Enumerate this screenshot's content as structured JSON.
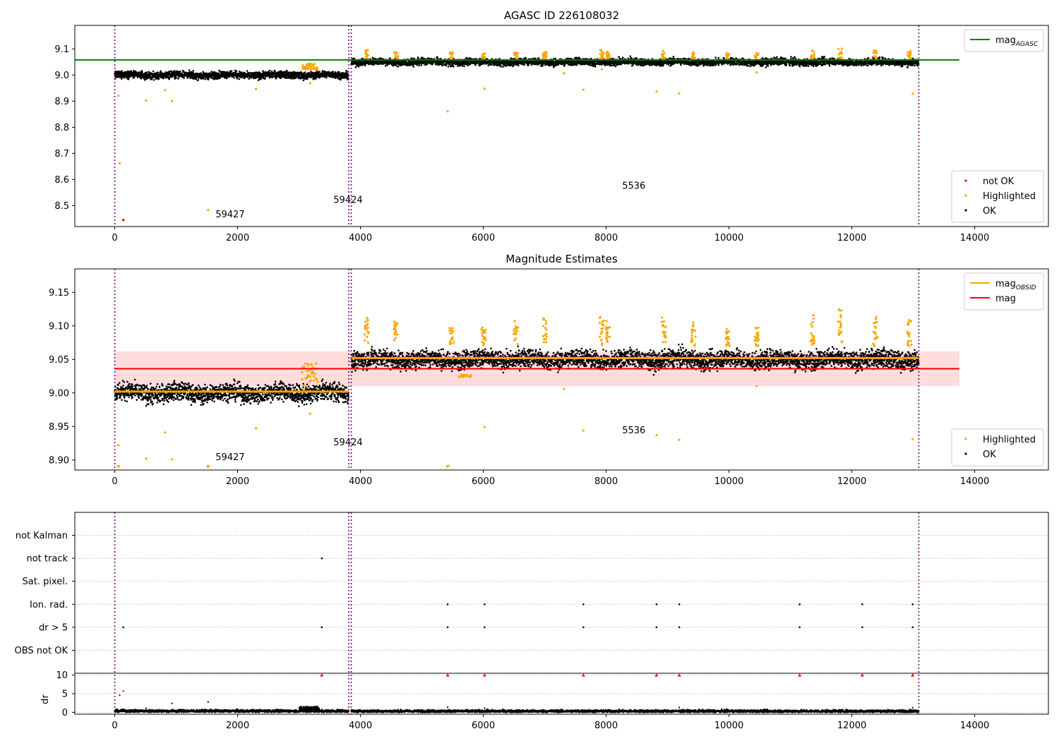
{
  "chart_data": [
    {
      "type": "scatter",
      "title": "AGASC ID 226108032",
      "xlim": [
        -650,
        15200
      ],
      "ylim": [
        8.42,
        9.19
      ],
      "xticks": [
        0,
        2000,
        4000,
        6000,
        8000,
        10000,
        12000,
        14000
      ],
      "yticks": [
        8.5,
        8.6,
        8.7,
        8.8,
        8.9,
        9.0,
        9.1
      ],
      "ytick_format": 1,
      "obs_boundaries": [
        0,
        3810,
        3850,
        13090
      ],
      "annotations": [
        {
          "text": "59427",
          "x": 1640,
          "y": 8.455
        },
        {
          "text": "59424",
          "x": 3560,
          "y": 8.51
        },
        {
          "text": "5536",
          "x": 8260,
          "y": 8.565
        }
      ],
      "reference_lines": [
        {
          "name": "mag_AGASC",
          "y": 9.058,
          "x": [
            -650,
            13750
          ],
          "color": "#008000"
        }
      ],
      "segments": [
        {
          "x": [
            0,
            3810
          ],
          "center": 9.0,
          "spread": 0.012,
          "color": "#000000"
        },
        {
          "x": [
            3850,
            13090
          ],
          "center": 9.05,
          "spread": 0.012,
          "color": "#000000"
        }
      ],
      "series": [
        {
          "name": "not OK",
          "color": "#ff0000",
          "points": [
            [
              140,
              8.445
            ]
          ]
        },
        {
          "name": "Highlighted",
          "color": "#ffa500",
          "points": [
            [
              60,
              8.921
            ],
            [
              80,
              8.662
            ],
            [
              510,
              8.902
            ],
            [
              820,
              8.942
            ],
            [
              930,
              8.901
            ],
            [
              1520,
              8.483
            ],
            [
              2300,
              8.947
            ],
            [
              3180,
              8.969
            ],
            [
              5420,
              8.861
            ],
            [
              6020,
              8.948
            ],
            [
              7310,
              9.007
            ],
            [
              7630,
              8.944
            ],
            [
              7930,
              9.022
            ],
            [
              8820,
              8.937
            ],
            [
              9190,
              8.93
            ],
            [
              10450,
              9.01
            ],
            [
              12990,
              8.929
            ]
          ]
        },
        {
          "name": "OK",
          "color": "#000000",
          "points": []
        }
      ],
      "legends": [
        {
          "position": "top-right",
          "items": [
            {
              "label": "mag",
              "sub": "AGASC",
              "kind": "line",
              "color": "#008000"
            }
          ]
        },
        {
          "position": "bottom-right",
          "items": [
            {
              "label": "not OK",
              "kind": "dot",
              "color": "#ff0000"
            },
            {
              "label": "Highlighted",
              "kind": "dot",
              "color": "#ffa500"
            },
            {
              "label": "OK",
              "kind": "dot",
              "color": "#000000"
            }
          ]
        }
      ]
    },
    {
      "type": "scatter",
      "title": "Magnitude Estimates",
      "xlim": [
        -650,
        15200
      ],
      "ylim": [
        8.885,
        9.185
      ],
      "xticks": [
        0,
        2000,
        4000,
        6000,
        8000,
        10000,
        12000,
        14000
      ],
      "yticks": [
        8.9,
        8.95,
        9.0,
        9.05,
        9.1,
        9.15
      ],
      "ytick_format": 2,
      "obs_boundaries": [
        0,
        3810,
        3850,
        13090
      ],
      "annotations": [
        {
          "text": "59427",
          "x": 1640,
          "y": 8.9
        },
        {
          "text": "59424",
          "x": 3560,
          "y": 8.922
        },
        {
          "text": "5536",
          "x": 8260,
          "y": 8.94
        }
      ],
      "band": {
        "y": [
          9.01,
          9.062
        ],
        "x": [
          0,
          13750
        ],
        "color": "#ffb3b3"
      },
      "reference_lines": [
        {
          "name": "mag",
          "y": 9.036,
          "x": [
            0,
            13750
          ],
          "color": "#ff0000"
        },
        {
          "name": "mag_OBSID",
          "y": 9.002,
          "x": [
            0,
            3810
          ],
          "color": "#ffa500"
        },
        {
          "name": "mag_OBSID",
          "y": 9.052,
          "x": [
            3850,
            13090
          ],
          "color": "#ffa500"
        }
      ],
      "segments": [
        {
          "x": [
            0,
            3810
          ],
          "center": 9.0,
          "spread": 0.012,
          "color": "#000000"
        },
        {
          "x": [
            3850,
            13090
          ],
          "center": 9.05,
          "spread": 0.012,
          "color": "#000000"
        }
      ],
      "series": [
        {
          "name": "Highlighted",
          "color": "#ffa500",
          "points": [
            [
              60,
              8.922
            ],
            [
              510,
              8.902
            ],
            [
              820,
              8.941
            ],
            [
              930,
              8.901
            ],
            [
              2300,
              8.947
            ],
            [
              3180,
              8.969
            ],
            [
              6020,
              8.949
            ],
            [
              7310,
              9.006
            ],
            [
              7630,
              8.944
            ],
            [
              8820,
              8.937
            ],
            [
              9190,
              8.93
            ],
            [
              10450,
              9.01
            ],
            [
              12990,
              8.931
            ]
          ]
        },
        {
          "name": "OK",
          "color": "#000000",
          "points": []
        }
      ],
      "clusters": [
        {
          "x": 4100,
          "top": 9.115
        },
        {
          "x": 4580,
          "top": 9.108
        },
        {
          "x": 5480,
          "top": 9.102
        },
        {
          "x": 6000,
          "top": 9.098
        },
        {
          "x": 6530,
          "top": 9.108
        },
        {
          "x": 7000,
          "top": 9.113
        },
        {
          "x": 7930,
          "top": 9.115
        },
        {
          "x": 8030,
          "top": 9.108
        },
        {
          "x": 8940,
          "top": 9.113
        },
        {
          "x": 9420,
          "top": 9.105
        },
        {
          "x": 9980,
          "top": 9.098
        },
        {
          "x": 10450,
          "top": 9.103
        },
        {
          "x": 11360,
          "top": 9.118
        },
        {
          "x": 11810,
          "top": 9.125
        },
        {
          "x": 12380,
          "top": 9.115
        },
        {
          "x": 12940,
          "top": 9.11
        }
      ],
      "legends": [
        {
          "position": "top-right",
          "items": [
            {
              "label": "mag",
              "sub": "OBSID",
              "kind": "line",
              "color": "#ffa500"
            },
            {
              "label": "mag",
              "kind": "line",
              "color": "#ff0000"
            }
          ]
        },
        {
          "position": "bottom-right",
          "items": [
            {
              "label": "Highlighted",
              "kind": "dot",
              "color": "#ffa500"
            },
            {
              "label": "OK",
              "kind": "dot",
              "color": "#000000"
            }
          ]
        }
      ]
    },
    {
      "type": "scatter",
      "xlim": [
        -650,
        15200
      ],
      "obs_boundaries": [
        0,
        3810,
        3850,
        13090
      ],
      "flags": {
        "rows": [
          "not Kalman",
          "not track",
          "Sat. pixel.",
          "Ion. rad.",
          "dr > 5",
          "OBS not OK"
        ],
        "points": [
          {
            "row": "not track",
            "x": 3370
          },
          {
            "row": "Ion. rad.",
            "x": 5420
          },
          {
            "row": "Ion. rad.",
            "x": 6020
          },
          {
            "row": "Ion. rad.",
            "x": 7630
          },
          {
            "row": "Ion. rad.",
            "x": 8820
          },
          {
            "row": "Ion. rad.",
            "x": 9190
          },
          {
            "row": "Ion. rad.",
            "x": 11150
          },
          {
            "row": "Ion. rad.",
            "x": 12170
          },
          {
            "row": "Ion. rad.",
            "x": 12990
          },
          {
            "row": "dr > 5",
            "x": 140
          },
          {
            "row": "dr > 5",
            "x": 3370
          },
          {
            "row": "dr > 5",
            "x": 5420
          },
          {
            "row": "dr > 5",
            "x": 6020
          },
          {
            "row": "dr > 5",
            "x": 7630
          },
          {
            "row": "dr > 5",
            "x": 8820
          },
          {
            "row": "dr > 5",
            "x": 9190
          },
          {
            "row": "dr > 5",
            "x": 11150
          },
          {
            "row": "dr > 5",
            "x": 12170
          },
          {
            "row": "dr > 5",
            "x": 12990
          }
        ]
      },
      "dr": {
        "ylabel": "dr",
        "ylim": [
          -0.5,
          10.5
        ],
        "yticks": [
          0,
          5,
          10
        ],
        "xticks": [
          0,
          2000,
          4000,
          6000,
          8000,
          10000,
          12000,
          14000
        ],
        "baseline": [
          {
            "x": [
              0,
              3810
            ],
            "level": 0.35
          },
          {
            "x": [
              3850,
              13090
            ],
            "level": 0.3
          }
        ],
        "bump": {
          "x": [
            3000,
            3330
          ],
          "level": 1.2
        },
        "outliers_black": [
          [
            930,
            2.4
          ],
          [
            1520,
            2.8
          ],
          [
            510,
            1.1
          ],
          [
            5420,
            1.4
          ],
          [
            6020,
            1.1
          ],
          [
            9190,
            1.3
          ],
          [
            12990,
            1.2
          ]
        ],
        "outliers_red": [
          [
            80,
            4.6
          ],
          [
            140,
            5.7
          ]
        ],
        "capped_red_x": [
          3370,
          5420,
          6020,
          7630,
          8820,
          9190,
          11150,
          12170,
          12990
        ]
      }
    }
  ]
}
